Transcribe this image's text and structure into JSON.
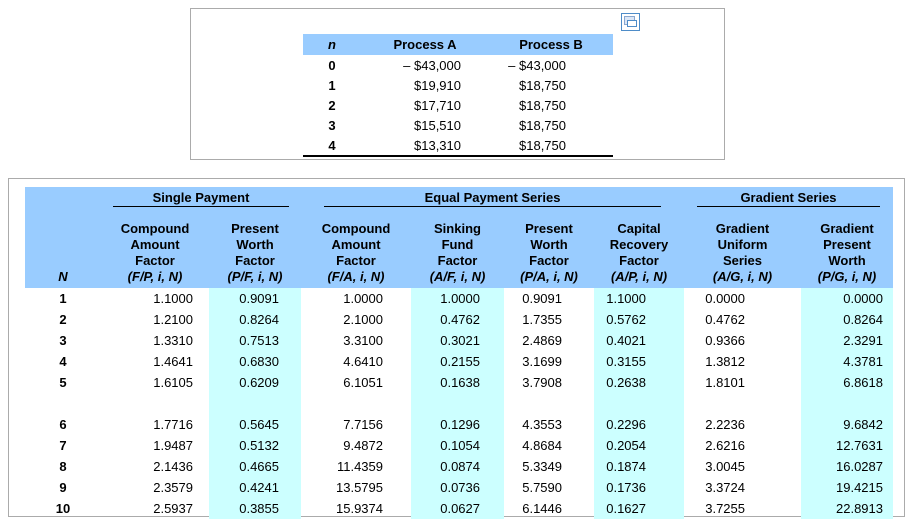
{
  "icons": {
    "window_button": "restore-window-icon"
  },
  "cashflow_table": {
    "columns": [
      "n",
      "Process A",
      "Process B"
    ],
    "rows": [
      [
        "0",
        "– $43,000",
        "– $43,000"
      ],
      [
        "1",
        "$19,910",
        "$18,750"
      ],
      [
        "2",
        "$17,710",
        "$18,750"
      ],
      [
        "3",
        "$15,510",
        "$18,750"
      ],
      [
        "4",
        "$13,310",
        "$18,750"
      ]
    ]
  },
  "factor_table": {
    "n_header": "N",
    "groups": [
      {
        "label": "Single Payment",
        "colspan": 2
      },
      {
        "label": "Equal Payment Series",
        "colspan": 4
      },
      {
        "label": "Gradient Series",
        "colspan": 2
      }
    ],
    "columns": [
      {
        "title": [
          "Compound",
          "Amount",
          "Factor"
        ],
        "formula": "(F/P, i, N)",
        "highlight": false
      },
      {
        "title": [
          "Present",
          "Worth",
          "Factor"
        ],
        "formula": "(P/F, i, N)",
        "highlight": true
      },
      {
        "title": [
          "Compound",
          "Amount",
          "Factor"
        ],
        "formula": "(F/A, i, N)",
        "highlight": false
      },
      {
        "title": [
          "Sinking",
          "Fund",
          "Factor"
        ],
        "formula": "(A/F, i, N)",
        "highlight": true
      },
      {
        "title": [
          "Present",
          "Worth",
          "Factor"
        ],
        "formula": "(P/A, i, N)",
        "highlight": false
      },
      {
        "title": [
          "Capital",
          "Recovery",
          "Factor"
        ],
        "formula": "(A/P, i, N)",
        "highlight": true
      },
      {
        "title": [
          "Gradient",
          "Uniform",
          "Series"
        ],
        "formula": "(A/G, i, N)",
        "highlight": false
      },
      {
        "title": [
          "Gradient",
          "Present",
          "Worth"
        ],
        "formula": "(P/G, i, N)",
        "highlight": true
      }
    ],
    "gap_after_row": 5,
    "rows": [
      [
        "1",
        "1.1000",
        "0.9091",
        "1.0000",
        "1.0000",
        "0.9091",
        "1.1000",
        "0.0000",
        "0.0000"
      ],
      [
        "2",
        "1.2100",
        "0.8264",
        "2.1000",
        "0.4762",
        "1.7355",
        "0.5762",
        "0.4762",
        "0.8264"
      ],
      [
        "3",
        "1.3310",
        "0.7513",
        "3.3100",
        "0.3021",
        "2.4869",
        "0.4021",
        "0.9366",
        "2.3291"
      ],
      [
        "4",
        "1.4641",
        "0.6830",
        "4.6410",
        "0.2155",
        "3.1699",
        "0.3155",
        "1.3812",
        "4.3781"
      ],
      [
        "5",
        "1.6105",
        "0.6209",
        "6.1051",
        "0.1638",
        "3.7908",
        "0.2638",
        "1.8101",
        "6.8618"
      ],
      [
        "6",
        "1.7716",
        "0.5645",
        "7.7156",
        "0.1296",
        "4.3553",
        "0.2296",
        "2.2236",
        "9.6842"
      ],
      [
        "7",
        "1.9487",
        "0.5132",
        "9.4872",
        "0.1054",
        "4.8684",
        "0.2054",
        "2.6216",
        "12.7631"
      ],
      [
        "8",
        "2.1436",
        "0.4665",
        "11.4359",
        "0.0874",
        "5.3349",
        "0.1874",
        "3.0045",
        "16.0287"
      ],
      [
        "9",
        "2.3579",
        "0.4241",
        "13.5795",
        "0.0736",
        "5.7590",
        "0.1736",
        "3.3724",
        "19.4215"
      ],
      [
        "10",
        "2.5937",
        "0.3855",
        "15.9374",
        "0.0627",
        "6.1446",
        "0.1627",
        "3.7255",
        "22.8913"
      ]
    ]
  },
  "colors": {
    "header_blue": "#99CCFF",
    "highlight_cyan": "#CCFFFF",
    "box_border": "#ABABAB"
  }
}
